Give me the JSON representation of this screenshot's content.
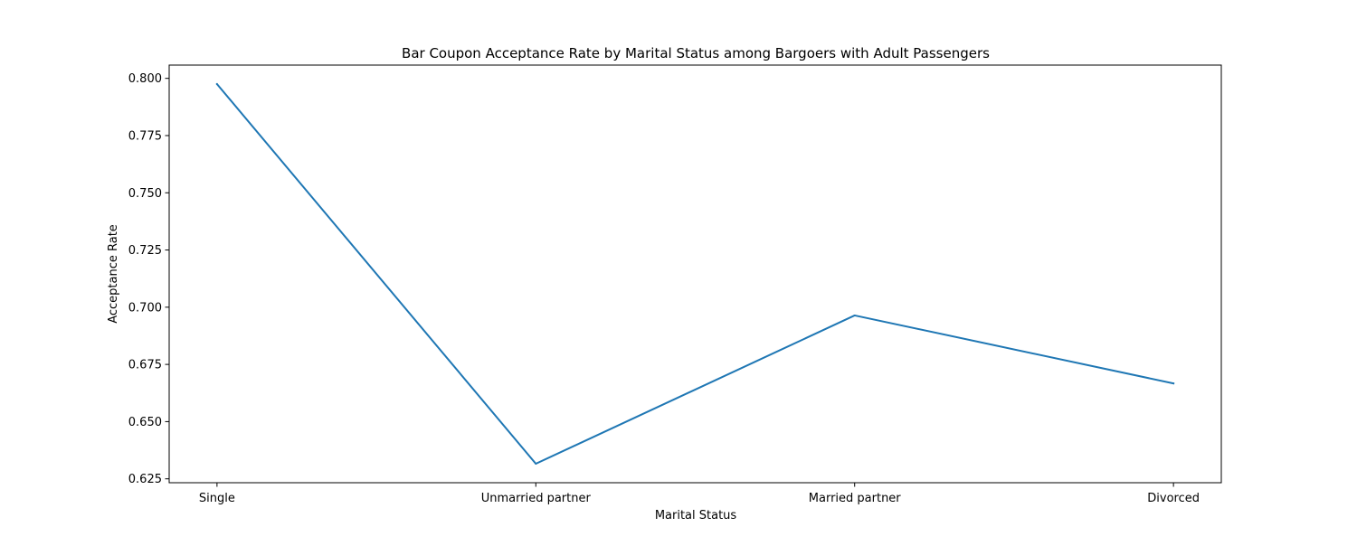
{
  "chart_data": {
    "type": "line",
    "title": "Bar Coupon Acceptance Rate by Marital Status among Bargoers with Adult Passengers",
    "xlabel": "Marital Status",
    "ylabel": "Acceptance Rate",
    "categories": [
      "Single",
      "Unmarried partner",
      "Married partner",
      "Divorced"
    ],
    "series": [
      {
        "values": [
          0.7975,
          0.6316,
          0.6964,
          0.6667
        ],
        "color": "#1f77b4"
      }
    ],
    "yticks": [
      "0.625",
      "0.650",
      "0.675",
      "0.700",
      "0.725",
      "0.750",
      "0.775",
      "0.800"
    ],
    "ylim": [
      0.6233,
      0.8058
    ],
    "grid": false,
    "legend": "none"
  }
}
